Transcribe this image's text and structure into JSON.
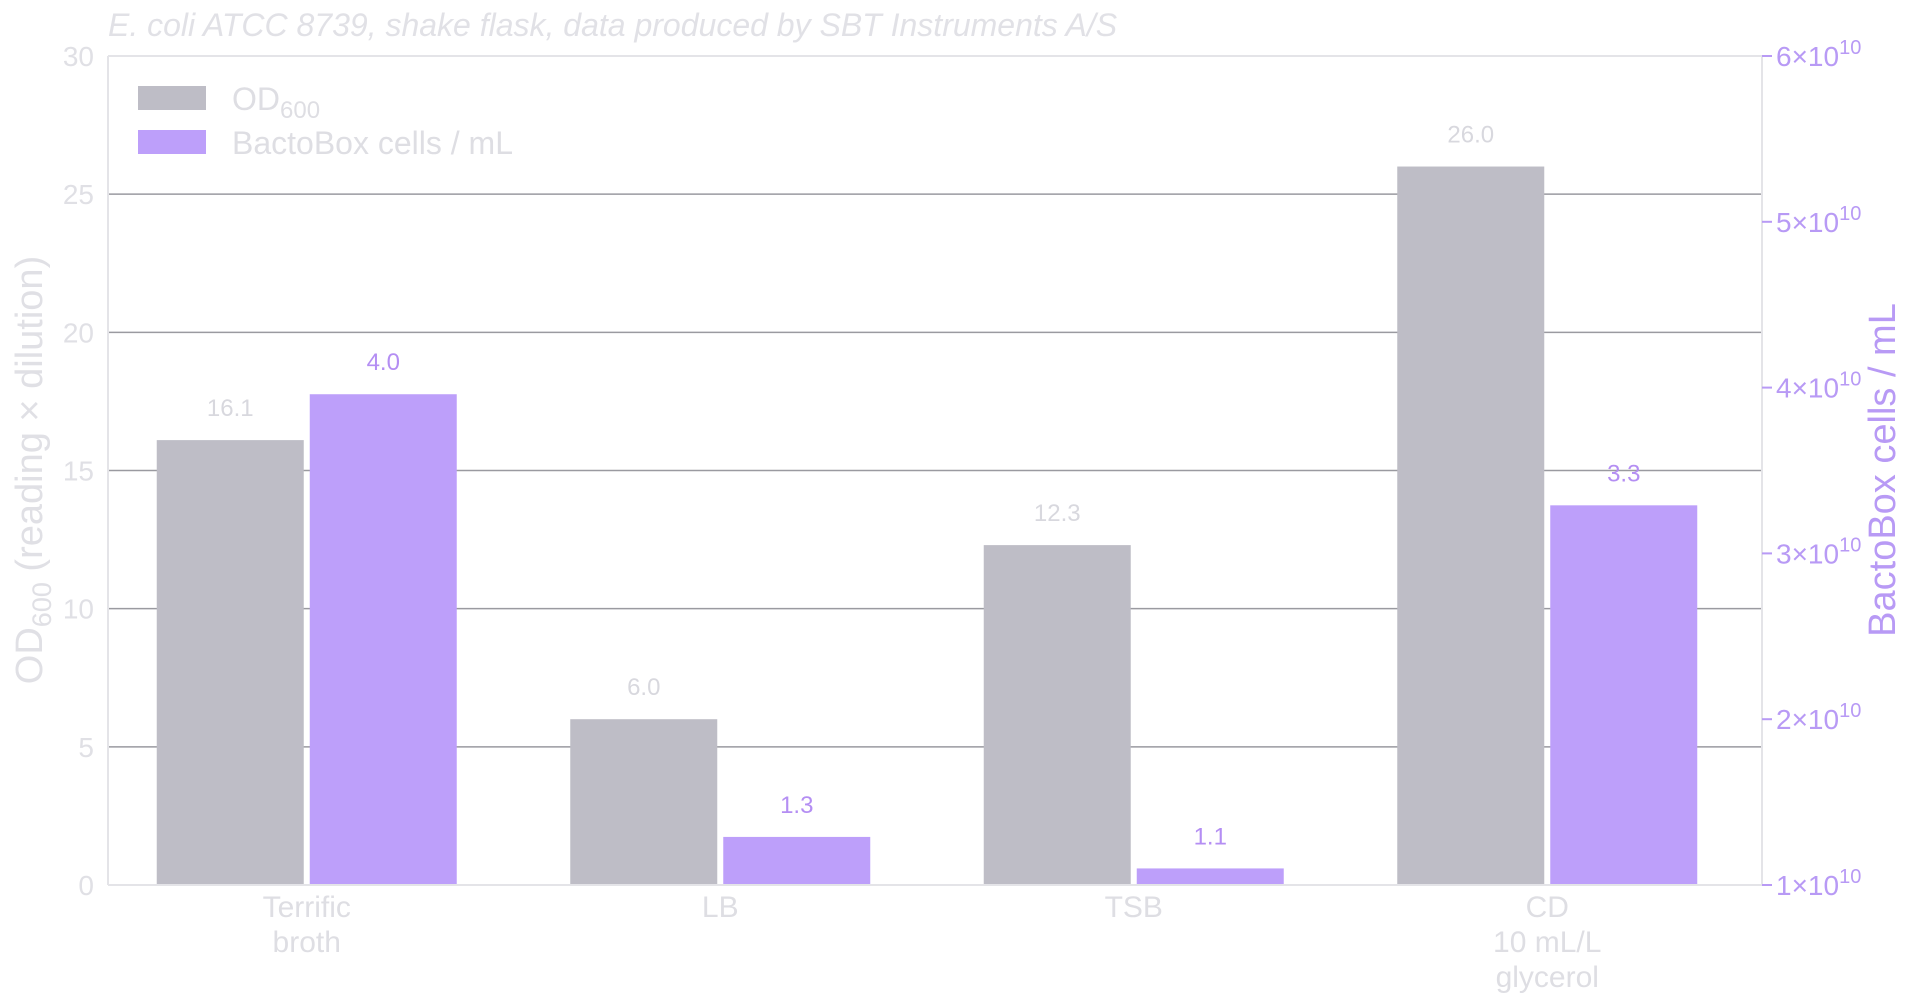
{
  "chart_data": {
    "type": "bar",
    "subtitle": "E. coli ATCC 8739, shake flask, data produced by SBT Instruments A/S",
    "categories": [
      [
        "Terrific",
        "broth"
      ],
      [
        "LB"
      ],
      [
        "TSB"
      ],
      [
        "CD",
        "10 mL/L",
        "glycerol"
      ]
    ],
    "series": [
      {
        "name": "OD600",
        "axis": "left",
        "color": "#bebdc6",
        "values": [
          16.1,
          6.0,
          12.3,
          26.0
        ],
        "labels": [
          "16.1",
          "6.0",
          "12.3",
          "26.0"
        ]
      },
      {
        "name": "BactoBox cells / mL",
        "axis": "right",
        "color": "#bd9ffa",
        "values": [
          39600000000.0,
          12900000000.0,
          11000000000.0,
          32900000000.0
        ],
        "labels": [
          "4.0",
          "1.3",
          "1.1",
          "3.3"
        ]
      }
    ],
    "y_left": {
      "label_main": "OD",
      "label_sub": "600",
      "label_rest": "  (reading × dilution)",
      "range": [
        0,
        30
      ],
      "ticks": [
        0,
        5,
        10,
        15,
        20,
        25,
        30
      ]
    },
    "y_right": {
      "label": "BactoBox cells / mL",
      "range": [
        10000000000.0,
        60000000000.0
      ],
      "ticks": [
        1,
        2,
        3,
        4,
        5,
        6
      ],
      "tick_prefix_suffix": "×10",
      "tick_exponent": "10"
    },
    "legend": {
      "position": "top-left",
      "entries": [
        {
          "main": "OD",
          "sub": "600",
          "color": "#bebdc6"
        },
        {
          "main": "BactoBox cells / mL",
          "sub": "",
          "color": "#bd9ffa"
        }
      ]
    },
    "grid": "horizontal"
  }
}
